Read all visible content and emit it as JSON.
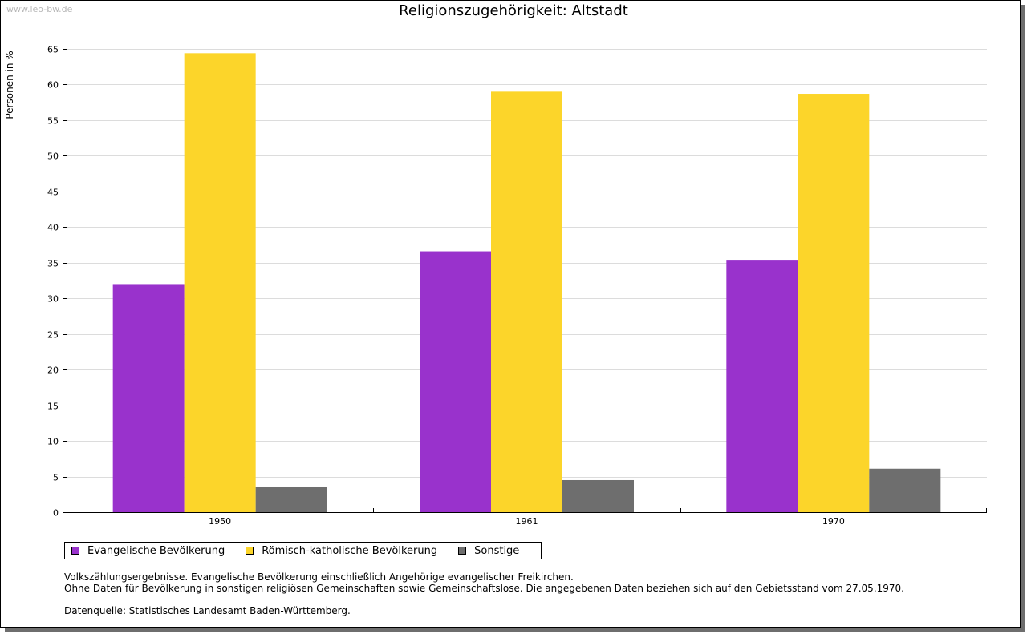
{
  "watermark": "www.leo-bw.de",
  "chart_data": {
    "type": "bar",
    "title": "Religionszugehörigkeit: Altstadt",
    "xlabel": "",
    "ylabel": "Personen in %",
    "categories": [
      "1950",
      "1961",
      "1970"
    ],
    "ylim": [
      0,
      65
    ],
    "yticks": [
      0,
      5,
      10,
      15,
      20,
      25,
      30,
      35,
      40,
      45,
      50,
      55,
      60,
      65
    ],
    "grid": true,
    "legend_position": "bottom",
    "series": [
      {
        "name": "Evangelische Bevölkerung",
        "color": "#9932cc",
        "values": [
          32.0,
          36.6,
          35.3
        ]
      },
      {
        "name": "Römisch-katholische Bevölkerung",
        "color": "#fcd52a",
        "values": [
          64.4,
          59.0,
          58.7
        ]
      },
      {
        "name": "Sonstige",
        "color": "#6e6e6e",
        "values": [
          3.6,
          4.5,
          6.1
        ]
      }
    ]
  },
  "notes": {
    "line1": "Volkszählungsergebnisse. Evangelische Bevölkerung einschließlich Angehörige evangelischer Freikirchen.",
    "line2": "Ohne Daten für Bevölkerung in sonstigen religiösen Gemeinschaften sowie Gemeinschaftslose. Die angegebenen Daten beziehen sich auf den Gebietsstand vom 27.05.1970.",
    "source": "Datenquelle: Statistisches Landesamt Baden-Württemberg."
  }
}
